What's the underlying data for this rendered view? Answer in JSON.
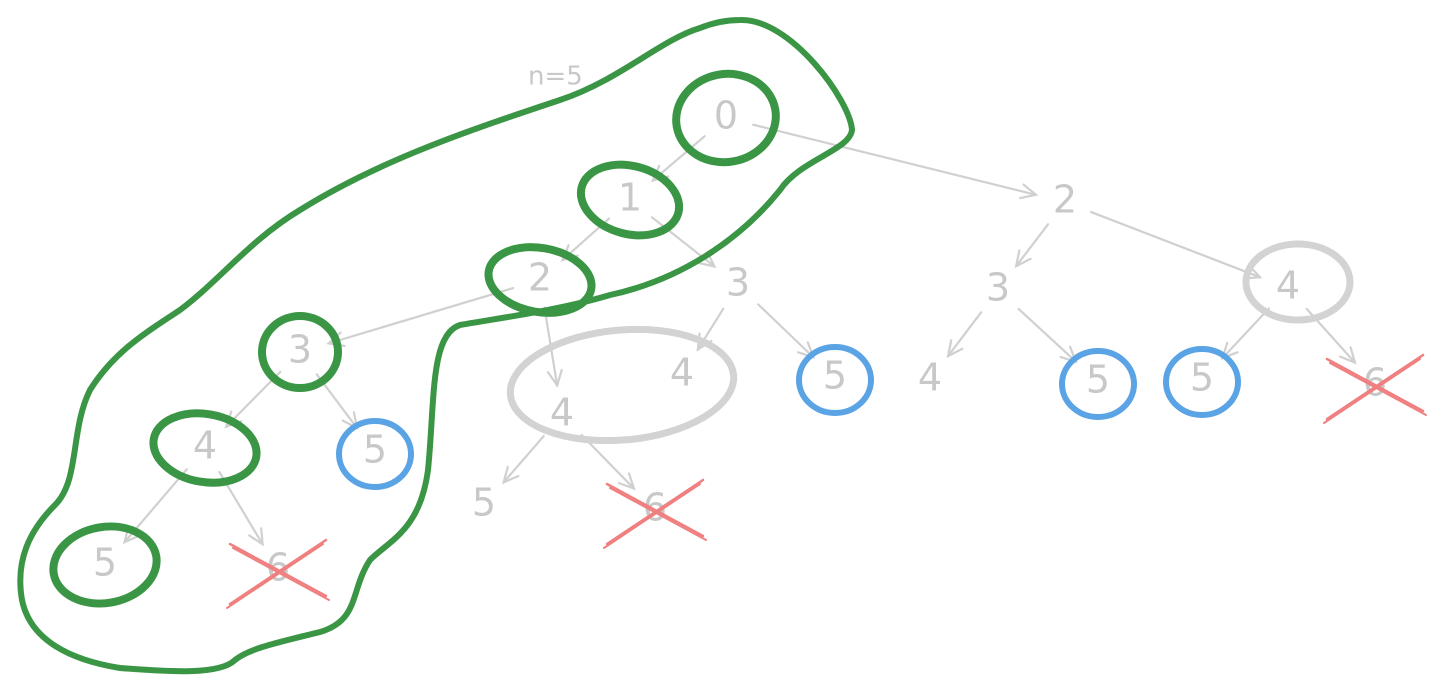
{
  "title": "n=5",
  "colors": {
    "label": "#c8c8c8",
    "edge": "#d0d0d0",
    "path_green": "#3a9645",
    "base_blue": "#5aa3e4",
    "cut_red": "#f08080",
    "memo_gray": "#d3d3d3"
  },
  "nodes": [
    {
      "id": "n0",
      "label": "0",
      "mark": "green"
    },
    {
      "id": "n1",
      "label": "1",
      "mark": "green"
    },
    {
      "id": "n2a",
      "label": "2",
      "mark": "green"
    },
    {
      "id": "n2b",
      "label": "2",
      "mark": "none"
    },
    {
      "id": "n3a",
      "label": "3",
      "mark": "green"
    },
    {
      "id": "n3b",
      "label": "3",
      "mark": "none"
    },
    {
      "id": "n3c",
      "label": "3",
      "mark": "none"
    },
    {
      "id": "n4a",
      "label": "4",
      "mark": "green"
    },
    {
      "id": "n4b",
      "label": "4",
      "mark": "gray"
    },
    {
      "id": "n4c",
      "label": "4",
      "mark": "none"
    },
    {
      "id": "n4d",
      "label": "4",
      "mark": "none"
    },
    {
      "id": "n4e",
      "label": "4",
      "mark": "gray"
    },
    {
      "id": "n5a",
      "label": "5",
      "mark": "green"
    },
    {
      "id": "n5b",
      "label": "5",
      "mark": "blue"
    },
    {
      "id": "n5c",
      "label": "5",
      "mark": "none"
    },
    {
      "id": "n5d",
      "label": "5",
      "mark": "blue"
    },
    {
      "id": "n5e",
      "label": "5",
      "mark": "blue"
    },
    {
      "id": "n5f",
      "label": "5",
      "mark": "blue"
    },
    {
      "id": "n6a",
      "label": "6",
      "mark": "cross"
    },
    {
      "id": "n6b",
      "label": "6",
      "mark": "cross"
    },
    {
      "id": "n6c",
      "label": "6",
      "mark": "cross"
    }
  ],
  "edges": [
    [
      "n0",
      "n1"
    ],
    [
      "n0",
      "n2b"
    ],
    [
      "n1",
      "n2a"
    ],
    [
      "n1",
      "n3b"
    ],
    [
      "n2a",
      "n3a"
    ],
    [
      "n2a",
      "n4c"
    ],
    [
      "n3a",
      "n4a"
    ],
    [
      "n3a",
      "n5b"
    ],
    [
      "n4a",
      "n5a"
    ],
    [
      "n4a",
      "n6a"
    ],
    [
      "n4c",
      "n5c"
    ],
    [
      "n4c",
      "n6b"
    ],
    [
      "n3b",
      "n4b"
    ],
    [
      "n3b",
      "n5d"
    ],
    [
      "n2b",
      "n3c"
    ],
    [
      "n2b",
      "n4e"
    ],
    [
      "n3c",
      "n4d"
    ],
    [
      "n3c",
      "n5e"
    ],
    [
      "n4e",
      "n5f"
    ],
    [
      "n4e",
      "n6c"
    ]
  ]
}
